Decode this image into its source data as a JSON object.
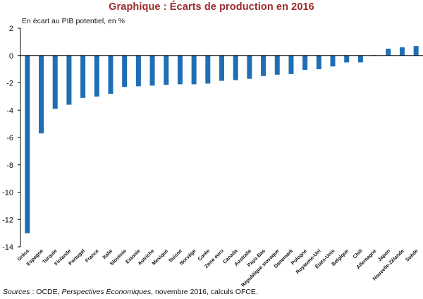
{
  "title": "Graphique : Écarts de production en 2016",
  "ylabel": "En écart au PIB potentiel, en %",
  "source": {
    "prefix": "Sources",
    "sep": " : OCDE, ",
    "publication": "Perspectives Économiques",
    "suffix": ", novembre 2016, calculs OFCE."
  },
  "colors": {
    "bar": "#1f6eb5",
    "title": "#9a2b2b"
  },
  "chart_data": {
    "type": "bar",
    "title": "Graphique : Écarts de production en 2016",
    "xlabel": "",
    "ylabel": "En écart au PIB potentiel, en %",
    "ylim": [
      -14,
      2
    ],
    "yticks": [
      2,
      0,
      -2,
      -4,
      -6,
      -8,
      -10,
      -12,
      -14
    ],
    "grid": false,
    "categories": [
      "Grèce",
      "Espagne",
      "Turquie",
      "Finlande",
      "Portugal",
      "France",
      "Italie",
      "Slovénie",
      "Estonie",
      "Autriche",
      "Mexique",
      "Suisse",
      "Norvège",
      "Corée",
      "Zone euro",
      "Canada",
      "Australie",
      "Pays-Bas",
      "République slovaque",
      "Danemark",
      "Pologne",
      "Royaume-Uni",
      "États-Unis",
      "Belgique",
      "Chili",
      "Allemagne",
      "Japon",
      "Nouvelle-Zélande",
      "Suède"
    ],
    "values": [
      -13.0,
      -5.7,
      -3.9,
      -3.6,
      -3.1,
      -3.0,
      -2.8,
      -2.3,
      -2.25,
      -2.2,
      -2.15,
      -2.1,
      -2.1,
      -2.05,
      -1.85,
      -1.8,
      -1.7,
      -1.5,
      -1.4,
      -1.35,
      -1.05,
      -1.0,
      -0.8,
      -0.5,
      -0.5,
      0.0,
      0.5,
      0.6,
      0.7
    ]
  }
}
